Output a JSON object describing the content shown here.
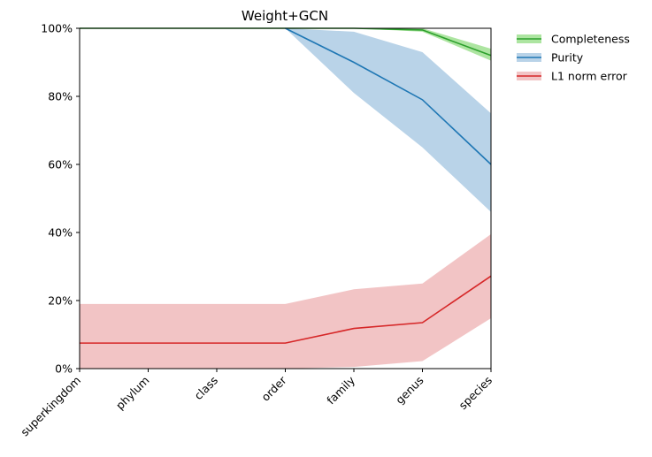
{
  "chart_data": {
    "type": "line",
    "title": "Weight+GCN",
    "xlabel": "",
    "ylabel": "",
    "categories": [
      "superkingdom",
      "phylum",
      "class",
      "order",
      "family",
      "genus",
      "species"
    ],
    "ylim": [
      0,
      1
    ],
    "yticks": [
      "0%",
      "20%",
      "40%",
      "60%",
      "80%",
      "100%"
    ],
    "ytick_values": [
      0,
      0.2,
      0.4,
      0.6,
      0.8,
      1.0
    ],
    "legend_position": "outside-top-right",
    "series": [
      {
        "name": "Completeness",
        "color": "#2ca02c",
        "fill_color": "#98df8a",
        "values": [
          1.0,
          1.0,
          1.0,
          1.0,
          1.0,
          0.995,
          0.92
        ],
        "lower": [
          1.0,
          1.0,
          1.0,
          1.0,
          1.0,
          0.99,
          0.905
        ],
        "upper": [
          1.0,
          1.0,
          1.0,
          1.0,
          1.0,
          1.0,
          0.94
        ]
      },
      {
        "name": "Purity",
        "color": "#1f77b4",
        "fill_color": "#a8c8e2",
        "values": [
          null,
          null,
          null,
          1.0,
          0.9,
          0.79,
          0.6
        ],
        "lower": [
          null,
          null,
          null,
          1.0,
          0.81,
          0.65,
          0.46
        ],
        "upper": [
          null,
          null,
          null,
          1.0,
          0.99,
          0.93,
          0.75
        ]
      },
      {
        "name": "L1 norm error",
        "color": "#d62728",
        "fill_color": "#efb5b6",
        "values": [
          0.075,
          0.075,
          0.075,
          0.075,
          0.118,
          0.135,
          0.272
        ],
        "lower": [
          0.0,
          0.0,
          0.0,
          0.0,
          0.005,
          0.022,
          0.148
        ],
        "upper": [
          0.19,
          0.19,
          0.19,
          0.19,
          0.233,
          0.25,
          0.395
        ]
      }
    ]
  }
}
